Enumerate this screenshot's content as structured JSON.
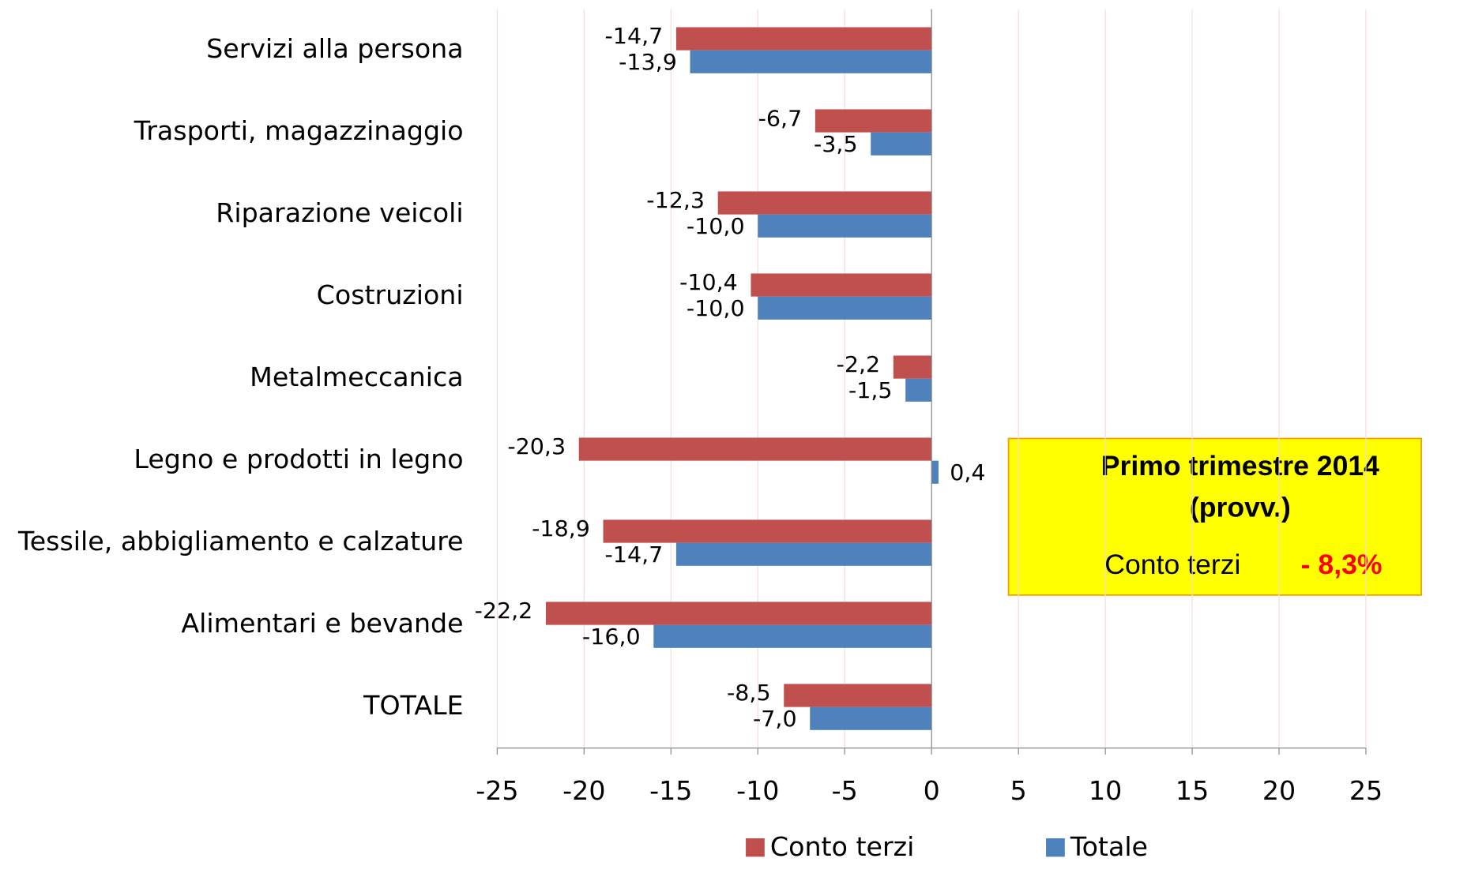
{
  "chart_data": {
    "type": "hbar",
    "categories": [
      "Servizi alla persona",
      "Trasporti, magazzinaggio",
      "Riparazione veicoli",
      "Costruzioni",
      "Metalmeccanica",
      "Legno e prodotti in legno",
      "Tessile, abbigliamento e calzature",
      "Alimentari e bevande",
      "TOTALE"
    ],
    "series": [
      {
        "name": "Conto terzi",
        "color": "#c0504d",
        "values": [
          -14.7,
          -6.7,
          -12.3,
          -10.4,
          -2.2,
          -20.3,
          -18.9,
          -22.2,
          -8.5
        ],
        "value_labels": [
          "-14,7",
          "-6,7",
          "-12,3",
          "-10,4",
          "-2,2",
          "-20,3",
          "-18,9",
          "-22,2",
          "-8,5"
        ]
      },
      {
        "name": "Totale",
        "color": "#4f81bd",
        "values": [
          -13.9,
          -3.5,
          -10.0,
          -10.0,
          -1.5,
          0.4,
          -14.7,
          -16.0,
          -7.0
        ],
        "value_labels": [
          "-13,9",
          "-3,5",
          "-10,0",
          "-10,0",
          "-1,5",
          "0,4",
          "-14,7",
          "-16,0",
          "-7,0"
        ]
      }
    ],
    "xlim": [
      -25,
      25
    ],
    "xticks": [
      -25,
      -20,
      -15,
      -10,
      -5,
      0,
      5,
      10,
      15,
      20,
      25
    ],
    "grid": true,
    "legend": "bottom",
    "annotation": {
      "title": "Primo trimestre 2014",
      "subtitle": "(provv.)",
      "label": "Conto terzi",
      "value": "- 8,3%"
    }
  }
}
